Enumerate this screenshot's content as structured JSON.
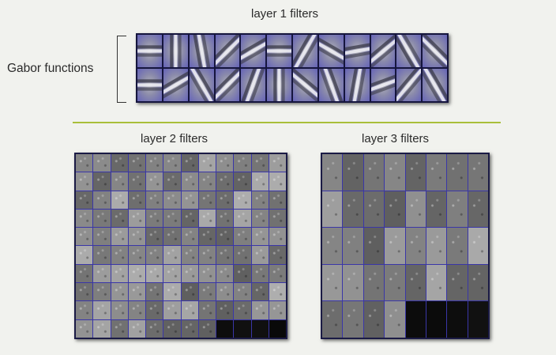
{
  "labels": {
    "layer1": "layer 1 filters",
    "gabor": "Gabor functions",
    "layer2": "layer 2 filters",
    "layer3": "layer 3 filters"
  }
}
